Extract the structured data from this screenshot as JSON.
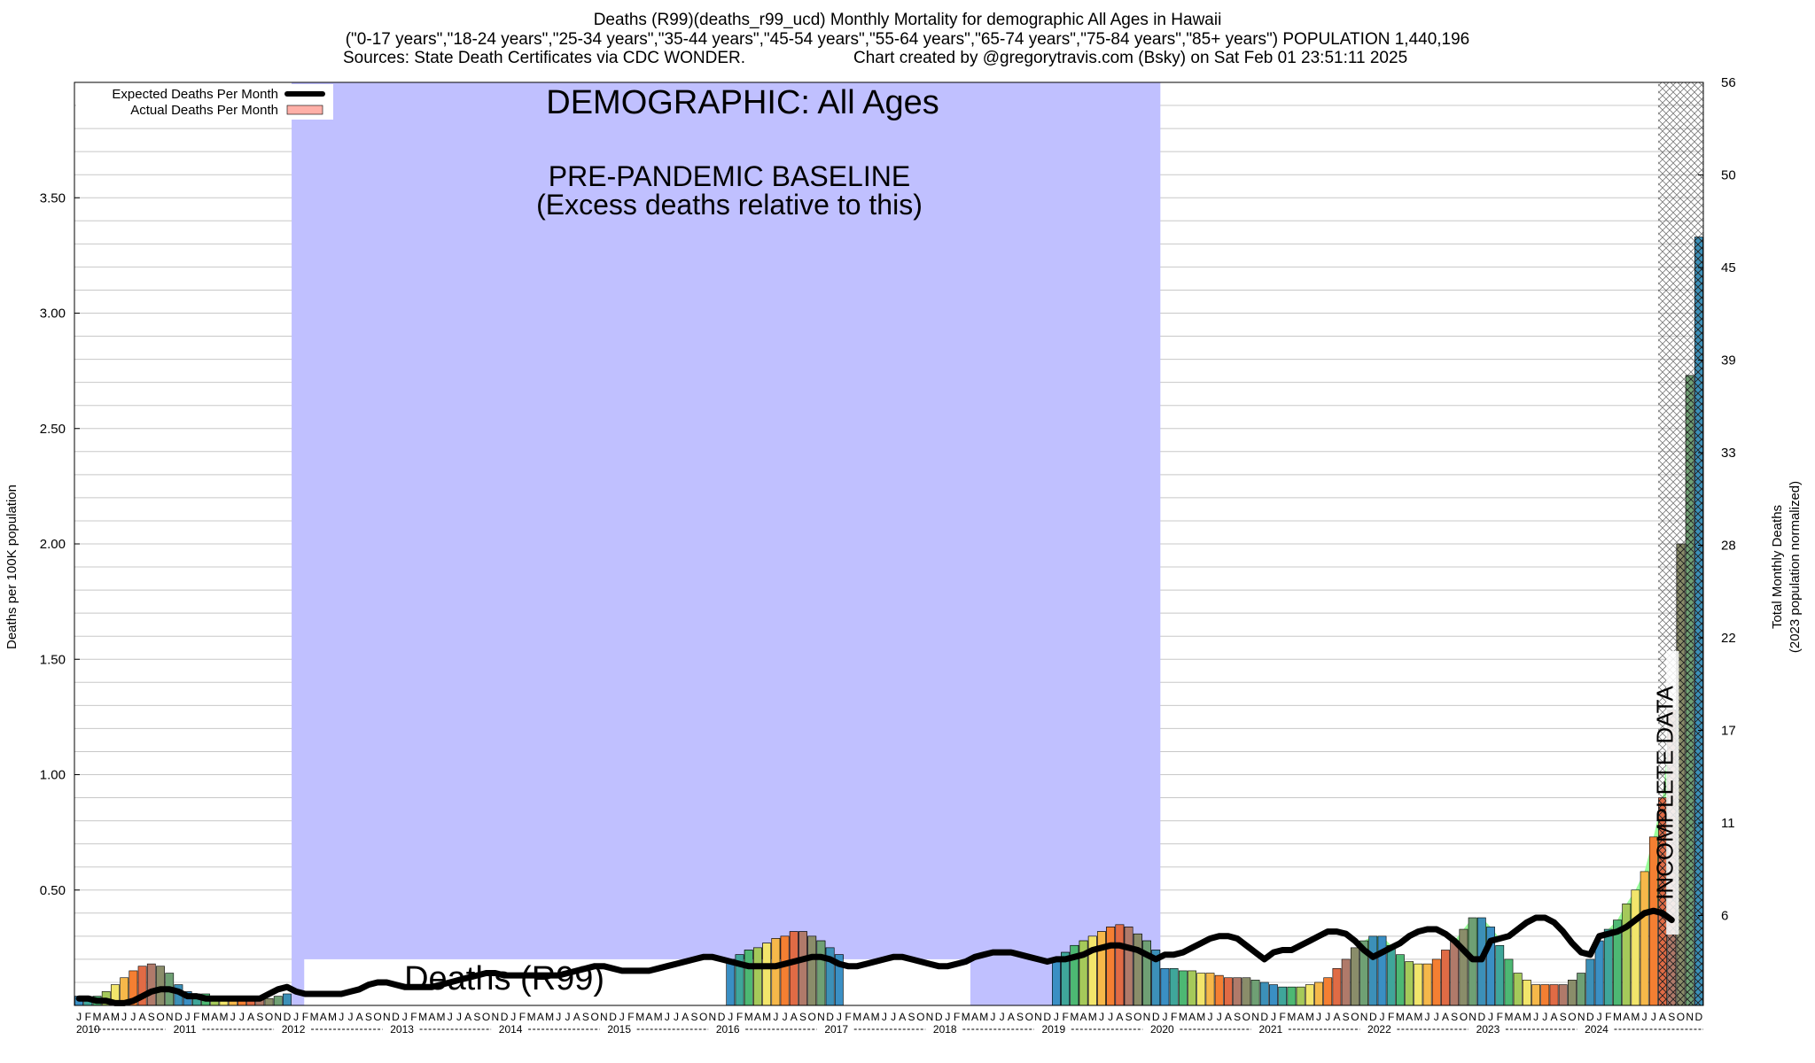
{
  "header": {
    "line1": "Deaths (R99)(deaths_r99_ucd) Monthly Mortality for demographic All Ages in Hawaii",
    "line2": "(\"0-17 years\",\"18-24 years\",\"25-34 years\",\"35-44 years\",\"45-54 years\",\"55-64 years\",\"65-74 years\",\"75-84 years\",\"85+ years\") POPULATION 1,440,196",
    "line3a": "Sources: State Death Certificates via CDC WONDER.",
    "line3b": "Chart created by @gregorytravis.com (Bsky) on Sat Feb 01 23:51:11 2025"
  },
  "chart_data": {
    "type": "bar",
    "title": "Deaths (R99)(deaths_r99_ucd) Monthly Mortality for demographic All Ages in Hawaii",
    "ylabel": "Deaths per 100K population",
    "y2label": "Total Monthly Deaths",
    "y2sublabel": "(2023 population normalized)",
    "ylim": [
      0,
      4.0
    ],
    "yticks": [
      "0.50",
      "1.00",
      "1.50",
      "2.00",
      "2.50",
      "3.00",
      "3.50"
    ],
    "y2ticks": [
      "6",
      "11",
      "17",
      "22",
      "28",
      "33",
      "39",
      "45",
      "50",
      "56"
    ],
    "month_letters": [
      "J",
      "F",
      "M",
      "A",
      "M",
      "J",
      "J",
      "A",
      "S",
      "O",
      "N",
      "D"
    ],
    "years": [
      "2010",
      "2011",
      "2012",
      "2013",
      "2014",
      "2015",
      "2016",
      "2017",
      "2018",
      "2019",
      "2020",
      "2021",
      "2022",
      "2023",
      "2024"
    ],
    "grid": true,
    "legend_position": "top-left",
    "legend": {
      "expected": "Expected Deaths Per Month",
      "actual": "Actual Deaths Per Month"
    },
    "series": [
      {
        "name": "Actual Deaths Per Month",
        "values": [
          0.04,
          0.03,
          0.04,
          0.06,
          0.09,
          0.12,
          0.15,
          0.17,
          0.18,
          0.17,
          0.14,
          0.09,
          0.06,
          0.05,
          0.05,
          0.04,
          0.04,
          0.04,
          0.04,
          0.03,
          0.03,
          0.03,
          0.04,
          0.05,
          0.06,
          0.06,
          0.06,
          0.06,
          0.06,
          0.07,
          0.08,
          0.09,
          0.1,
          0.11,
          0.11,
          0.1,
          0.08,
          0.08,
          0.08,
          0.08,
          0.08,
          0.09,
          0.1,
          0.11,
          0.12,
          0.13,
          0.14,
          0.14,
          0.13,
          0.12,
          0.11,
          0.11,
          0.11,
          0.11,
          0.12,
          0.12,
          0.13,
          0.14,
          0.15,
          0.15,
          0.15,
          0.15,
          0.15,
          0.15,
          0.16,
          0.16,
          0.16,
          0.17,
          0.18,
          0.18,
          0.19,
          0.19,
          0.2,
          0.22,
          0.24,
          0.25,
          0.27,
          0.29,
          0.3,
          0.32,
          0.32,
          0.3,
          0.28,
          0.25,
          0.22,
          0.2,
          0.19,
          0.18,
          0.18,
          0.18,
          0.19,
          0.19,
          0.2,
          0.2,
          0.19,
          0.18,
          0.18,
          0.18,
          0.18,
          0.19,
          0.19,
          0.2,
          0.2,
          0.21,
          0.21,
          0.2,
          0.2,
          0.2,
          0.2,
          0.23,
          0.26,
          0.28,
          0.3,
          0.32,
          0.34,
          0.35,
          0.34,
          0.31,
          0.28,
          0.24,
          0.16,
          0.16,
          0.15,
          0.15,
          0.14,
          0.14,
          0.13,
          0.12,
          0.12,
          0.12,
          0.11,
          0.1,
          0.09,
          0.08,
          0.08,
          0.08,
          0.09,
          0.1,
          0.12,
          0.16,
          0.2,
          0.25,
          0.28,
          0.3,
          0.3,
          0.26,
          0.22,
          0.19,
          0.18,
          0.18,
          0.2,
          0.24,
          0.28,
          0.33,
          0.38,
          0.38,
          0.34,
          0.26,
          0.2,
          0.14,
          0.11,
          0.09,
          0.09,
          0.09,
          0.09,
          0.11,
          0.14,
          0.2,
          0.28,
          0.33,
          0.37,
          0.44,
          0.5,
          0.58,
          0.73,
          0.9,
          1.28,
          2.0,
          2.73,
          3.33
        ]
      },
      {
        "name": "Expected Deaths Per Month",
        "values": [
          0.03,
          0.03,
          0.02,
          0.02,
          0.01,
          0.01,
          0.02,
          0.04,
          0.06,
          0.07,
          0.07,
          0.06,
          0.04,
          0.04,
          0.03,
          0.03,
          0.03,
          0.03,
          0.03,
          0.03,
          0.03,
          0.05,
          0.07,
          0.08,
          0.06,
          0.05,
          0.05,
          0.05,
          0.05,
          0.05,
          0.06,
          0.07,
          0.09,
          0.1,
          0.1,
          0.09,
          0.08,
          0.08,
          0.08,
          0.08,
          0.09,
          0.1,
          0.11,
          0.12,
          0.13,
          0.14,
          0.14,
          0.13,
          0.13,
          0.13,
          0.13,
          0.13,
          0.13,
          0.13,
          0.14,
          0.15,
          0.16,
          0.17,
          0.17,
          0.16,
          0.15,
          0.15,
          0.15,
          0.15,
          0.16,
          0.17,
          0.18,
          0.19,
          0.2,
          0.21,
          0.21,
          0.2,
          0.19,
          0.18,
          0.17,
          0.17,
          0.17,
          0.17,
          0.18,
          0.19,
          0.2,
          0.21,
          0.21,
          0.2,
          0.18,
          0.17,
          0.17,
          0.18,
          0.19,
          0.2,
          0.21,
          0.21,
          0.2,
          0.19,
          0.18,
          0.17,
          0.17,
          0.18,
          0.19,
          0.21,
          0.22,
          0.23,
          0.23,
          0.23,
          0.22,
          0.21,
          0.2,
          0.19,
          0.2,
          0.2,
          0.21,
          0.22,
          0.24,
          0.25,
          0.26,
          0.26,
          0.25,
          0.24,
          0.22,
          0.2,
          0.22,
          0.22,
          0.23,
          0.25,
          0.27,
          0.29,
          0.3,
          0.3,
          0.29,
          0.26,
          0.23,
          0.2,
          0.23,
          0.24,
          0.24,
          0.26,
          0.28,
          0.3,
          0.32,
          0.32,
          0.31,
          0.28,
          0.24,
          0.21,
          0.23,
          0.25,
          0.27,
          0.3,
          0.32,
          0.33,
          0.33,
          0.31,
          0.28,
          0.24,
          0.2,
          0.2,
          0.28,
          0.29,
          0.3,
          0.33,
          0.36,
          0.38,
          0.38,
          0.36,
          0.32,
          0.27,
          0.23,
          0.22,
          0.3,
          0.31,
          0.32,
          0.34,
          0.37,
          0.4,
          0.41,
          0.4,
          0.37
        ]
      }
    ],
    "annotations": {
      "demographic": "DEMOGRAPHIC: All Ages",
      "baseline_line1": "PRE-PANDEMIC BASELINE",
      "baseline_line2": "(Excess deaths relative to this)",
      "baseline_start": "2012-01",
      "baseline_end": "2019-12",
      "deaths_label": "Deaths (R99)",
      "incomplete": "INCOMPLETE DATA",
      "incomplete_start": "2024-08"
    },
    "colors": {
      "baseline_fill": "#c0c0ff",
      "expected_line": "#000000",
      "excess_fill": "#99ff99",
      "actual_legend": "#ffb0a8",
      "bar_palette": [
        "#3a8fc4",
        "#3fa69a",
        "#4db873",
        "#a5c95a",
        "#f2e56b",
        "#f6b84a",
        "#f47f32",
        "#e06b45",
        "#b07a6a",
        "#8a8d6a",
        "#6fa074",
        "#3c90b8"
      ]
    }
  }
}
